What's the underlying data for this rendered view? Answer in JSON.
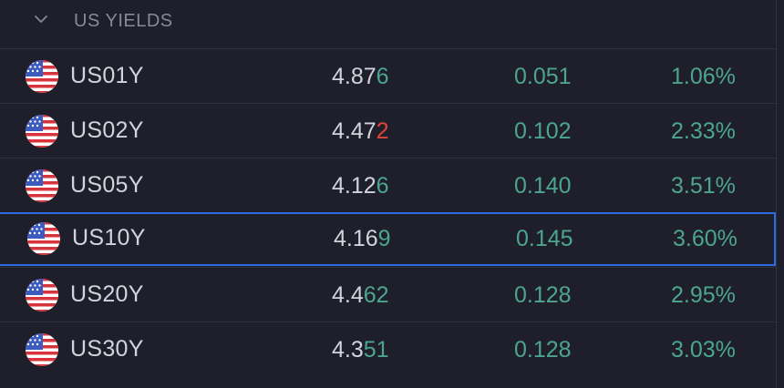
{
  "section": {
    "title": "US YIELDS"
  },
  "colors": {
    "positive": "#4ca58f",
    "negative": "#e2433b",
    "selected_border": "#2e6be0",
    "background": "#1e1f2b"
  },
  "rows": [
    {
      "symbol": "US01Y",
      "last_base": "4.87",
      "last_tail": "6",
      "tail_dir": "up",
      "change": "0.051",
      "change_pct": "1.06%",
      "icon": "us-flag-icon"
    },
    {
      "symbol": "US02Y",
      "last_base": "4.47",
      "last_tail": "2",
      "tail_dir": "down",
      "change": "0.102",
      "change_pct": "2.33%",
      "icon": "us-flag-icon"
    },
    {
      "symbol": "US05Y",
      "last_base": "4.12",
      "last_tail": "6",
      "tail_dir": "up",
      "change": "0.140",
      "change_pct": "3.51%",
      "icon": "us-flag-icon"
    },
    {
      "symbol": "US10Y",
      "last_base": "4.16",
      "last_tail": "9",
      "tail_dir": "up",
      "change": "0.145",
      "change_pct": "3.60%",
      "icon": "us-flag-icon",
      "selected": true
    },
    {
      "symbol": "US20Y",
      "last_base": "4.4",
      "last_tail": "62",
      "tail_dir": "up",
      "change": "0.128",
      "change_pct": "2.95%",
      "icon": "us-flag-icon"
    },
    {
      "symbol": "US30Y",
      "last_base": "4.3",
      "last_tail": "51",
      "tail_dir": "up",
      "change": "0.128",
      "change_pct": "3.03%",
      "icon": "us-flag-icon"
    }
  ]
}
